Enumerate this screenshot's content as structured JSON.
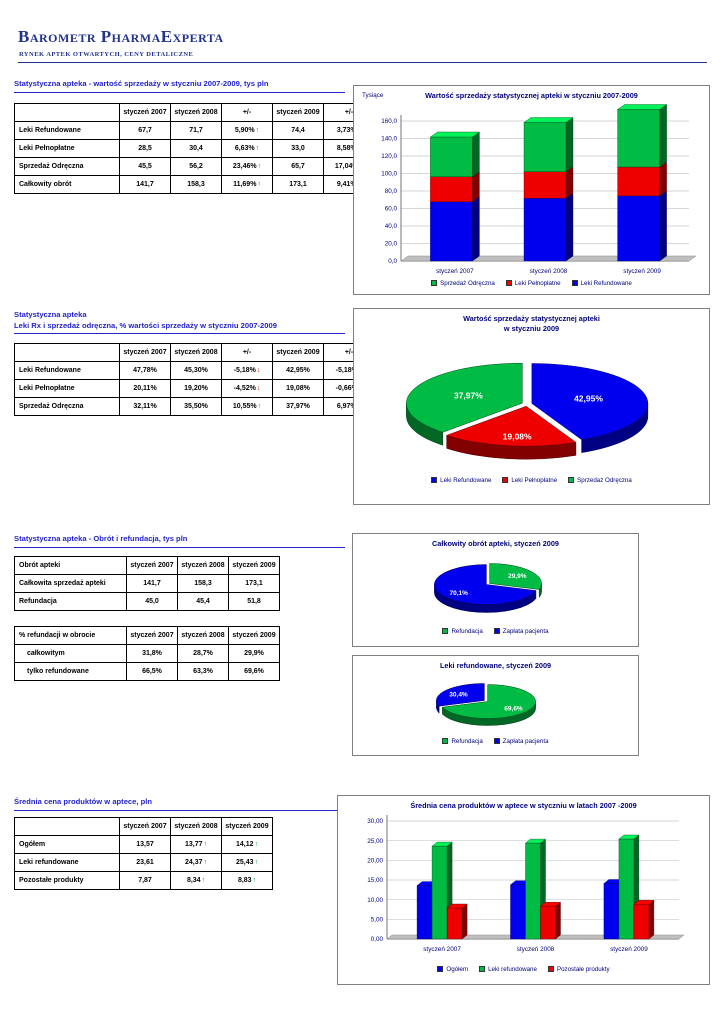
{
  "header": {
    "title": "Barometr PharmaExperta",
    "subtitle": "RYNEK APTEK OTWARTYCH, CENY DETALICZNE"
  },
  "sections": {
    "s1": {
      "title": "Statystyczna apteka - wartość sprzedaży w styczniu 2007-2009, tys pln"
    },
    "s2": {
      "title_line1": "Statystyczna apteka",
      "title_line2": "Leki Rx i sprzedaż odręczna, % wartości sprzedaży w styczniu 2007-2009"
    },
    "s3": {
      "title": "Statystyczna apteka - Obrót i refundacja, tys pln"
    },
    "s4": {
      "title": "Średnia cena produktów w aptece, pln"
    }
  },
  "tables": {
    "sales_value": {
      "headers": [
        "",
        "styczeń 2007",
        "styczeń 2008",
        "+/-",
        "styczeń 2009",
        "+/-"
      ],
      "rows": [
        {
          "label": "Leki Refundowane",
          "cells": [
            {
              "t": "67,7"
            },
            {
              "t": "71,7"
            },
            {
              "t": "5,90%",
              "a": "up"
            },
            {
              "t": "74,4"
            },
            {
              "t": "3,73%",
              "a": "up"
            }
          ]
        },
        {
          "label": "Leki Pełnopłatne",
          "cells": [
            {
              "t": "28,5"
            },
            {
              "t": "30,4"
            },
            {
              "t": "6,63%",
              "a": "up"
            },
            {
              "t": "33,0"
            },
            {
              "t": "8,58%",
              "a": "up"
            }
          ]
        },
        {
          "label": "Sprzedaż Odręczna",
          "cells": [
            {
              "t": "45,5"
            },
            {
              "t": "56,2"
            },
            {
              "t": "23,46%",
              "a": "up"
            },
            {
              "t": "65,7"
            },
            {
              "t": "17,04%",
              "a": "up"
            }
          ]
        },
        {
          "label": "Całkowity obrót",
          "cells": [
            {
              "t": "141,7"
            },
            {
              "t": "158,3"
            },
            {
              "t": "11,69%",
              "a": "up"
            },
            {
              "t": "173,1"
            },
            {
              "t": "9,41%",
              "a": "up"
            }
          ]
        }
      ]
    },
    "sales_share": {
      "headers": [
        "",
        "styczeń 2007",
        "styczeń 2008",
        "+/-",
        "styczeń 2009",
        "+/-"
      ],
      "rows": [
        {
          "label": "Leki Refundowane",
          "cells": [
            {
              "t": "47,78%"
            },
            {
              "t": "45,30%"
            },
            {
              "t": "-5,18%",
              "a": "down"
            },
            {
              "t": "42,95%"
            },
            {
              "t": "-5,18%",
              "a": "down"
            }
          ]
        },
        {
          "label": "Leki Pełnopłatne",
          "cells": [
            {
              "t": "20,11%"
            },
            {
              "t": "19,20%"
            },
            {
              "t": "-4,52%",
              "a": "down"
            },
            {
              "t": "19,08%"
            },
            {
              "t": "-0,66%",
              "a": "down"
            }
          ]
        },
        {
          "label": "Sprzedaż Odręczna",
          "cells": [
            {
              "t": "32,11%"
            },
            {
              "t": "35,50%"
            },
            {
              "t": "10,55%",
              "a": "up"
            },
            {
              "t": "37,97%"
            },
            {
              "t": "6,97%",
              "a": "up"
            }
          ]
        }
      ]
    },
    "turnover_refund": {
      "headers": [
        "Obrót apteki",
        "styczeń 2007",
        "styczeń 2008",
        "styczeń 2009"
      ],
      "first_header_left": true,
      "rows": [
        {
          "label": "Całkowita sprzedaż apteki",
          "cells": [
            {
              "t": "141,7"
            },
            {
              "t": "158,3"
            },
            {
              "t": "173,1"
            }
          ]
        },
        {
          "label": "Refundacja",
          "cells": [
            {
              "t": "45,0"
            },
            {
              "t": "45,4"
            },
            {
              "t": "51,8"
            }
          ]
        }
      ]
    },
    "refund_share": {
      "headers": [
        "% refundacji w obrocie",
        "styczeń 2007",
        "styczeń 2008",
        "styczeń 2009"
      ],
      "first_header_left": true,
      "rows": [
        {
          "label": "całkowitym",
          "indent": true,
          "cells": [
            {
              "t": "31,8%"
            },
            {
              "t": "28,7%"
            },
            {
              "t": "29,9%"
            }
          ]
        },
        {
          "label": "tylko refundowane",
          "indent": true,
          "cells": [
            {
              "t": "66,5%"
            },
            {
              "t": "63,3%"
            },
            {
              "t": "69,6%"
            }
          ]
        }
      ]
    },
    "avg_price": {
      "headers": [
        "",
        "styczeń 2007",
        "styczeń 2008",
        "styczeń 2009"
      ],
      "rows": [
        {
          "label": "Ogółem",
          "cells": [
            {
              "t": "13,57"
            },
            {
              "t": "13,77",
              "a": "up"
            },
            {
              "t": "14,12",
              "a": "up"
            }
          ]
        },
        {
          "label": "Leki refundowane",
          "cells": [
            {
              "t": "23,61"
            },
            {
              "t": "24,37",
              "a": "up"
            },
            {
              "t": "25,43",
              "a": "up"
            }
          ]
        },
        {
          "label": "Pozostałe produkty",
          "cells": [
            {
              "t": "7,87"
            },
            {
              "t": "8,34",
              "a": "up"
            },
            {
              "t": "8,83",
              "a": "up"
            }
          ]
        }
      ]
    }
  },
  "colors": {
    "blue": "#0000ee",
    "red": "#ee0000",
    "green": "#00bb44",
    "navy": "#00007f",
    "section_blue": "#2323cc"
  },
  "chart_data": [
    {
      "id": "sales-value-stacked-bar",
      "type": "bar",
      "stacked": true,
      "title_lines": [
        "Wartość sprzedaży statystycznej apteki w styczniu 2007-2009"
      ],
      "axis_note": "Tysiące",
      "categories": [
        "styczeń 2007",
        "styczeń 2008",
        "styczeń 2009"
      ],
      "series": [
        {
          "name": "Leki Refundowane",
          "color": "#0000ee",
          "values": [
            67.7,
            71.7,
            74.4
          ]
        },
        {
          "name": "Leki Pełnopłatne",
          "color": "#ee0000",
          "values": [
            28.5,
            30.4,
            33.0
          ]
        },
        {
          "name": "Sprzedaż Odręczna",
          "color": "#00bb44",
          "values": [
            45.5,
            56.2,
            65.7
          ]
        }
      ],
      "ylim": [
        0,
        160
      ],
      "ystep": 20,
      "ytick_decimals": 1,
      "grid": true,
      "legend_position": "bottom",
      "legend": [
        {
          "label": "Sprzedaż Odręczna",
          "color": "#00bb44"
        },
        {
          "label": "Leki Pełnopłatne",
          "color": "#ee0000"
        },
        {
          "label": "Leki Refundowane",
          "color": "#0000ee"
        }
      ]
    },
    {
      "id": "sales-share-pie",
      "type": "pie",
      "title_lines": [
        "Wartość sprzedaży statystycznej apteki",
        "w styczniu 2009"
      ],
      "slices": [
        {
          "name": "Leki Refundowane",
          "value": 42.95,
          "label": "42,95%",
          "color": "#0000ee"
        },
        {
          "name": "Leki Pełnopłatne",
          "value": 19.08,
          "label": "19,08%",
          "color": "#ee0000"
        },
        {
          "name": "Sprzedaż Odręczna",
          "value": 37.97,
          "label": "37,97%",
          "color": "#00bb44"
        }
      ],
      "legend_position": "bottom",
      "legend": [
        {
          "label": "Leki Refundowane",
          "color": "#0000ee"
        },
        {
          "label": "Leki Pełnopłatne",
          "color": "#ee0000"
        },
        {
          "label": "Sprzedaż Odręczna",
          "color": "#00bb44"
        }
      ]
    },
    {
      "id": "total-turnover-pie",
      "type": "pie",
      "title_lines": [
        "Całkowity obrót apteki, styczeń 2009"
      ],
      "slices": [
        {
          "name": "Refundacja",
          "value": 29.9,
          "label": "29,9%",
          "color": "#00bb44"
        },
        {
          "name": "Zapłata pacjenta",
          "value": 70.1,
          "label": "70,1%",
          "color": "#0000ee"
        }
      ],
      "legend_position": "bottom",
      "legend": [
        {
          "label": "Refundacja",
          "color": "#00bb44"
        },
        {
          "label": "Zapłata pacjenta",
          "color": "#0000ee"
        }
      ]
    },
    {
      "id": "refunded-drugs-pie",
      "type": "pie",
      "title_lines": [
        "Leki refundowane, styczeń 2009"
      ],
      "slices": [
        {
          "name": "Refundacja",
          "value": 69.6,
          "label": "69,6%",
          "color": "#00bb44"
        },
        {
          "name": "Zapłata pacjenta",
          "value": 30.4,
          "label": "30,4%",
          "color": "#0000ee"
        }
      ],
      "legend_position": "bottom",
      "legend": [
        {
          "label": "Refundacja",
          "color": "#00bb44"
        },
        {
          "label": "Zapłata pacjenta",
          "color": "#0000ee"
        }
      ]
    },
    {
      "id": "avg-price-bar",
      "type": "bar",
      "stacked": false,
      "title_lines": [
        "Średnia cena produktów w aptece w styczniu w latach 2007 -2009"
      ],
      "categories": [
        "styczeń 2007",
        "styczeń 2008",
        "styczeń 2009"
      ],
      "series": [
        {
          "name": "Ogółem",
          "color": "#0000ee",
          "values": [
            13.57,
            13.77,
            14.12
          ]
        },
        {
          "name": "Leki refundowane",
          "color": "#00bb44",
          "values": [
            23.61,
            24.37,
            25.43
          ]
        },
        {
          "name": "Pozostałe produkty",
          "color": "#ee0000",
          "values": [
            7.87,
            8.34,
            8.83
          ]
        }
      ],
      "ylim": [
        0,
        30
      ],
      "ystep": 5,
      "ytick_decimals": 2,
      "grid": true,
      "legend_position": "bottom",
      "legend": [
        {
          "label": "Ogółem",
          "color": "#0000ee"
        },
        {
          "label": "Leki refundowane",
          "color": "#00bb44"
        },
        {
          "label": "Pozostałe produkty",
          "color": "#ee0000"
        }
      ]
    }
  ]
}
